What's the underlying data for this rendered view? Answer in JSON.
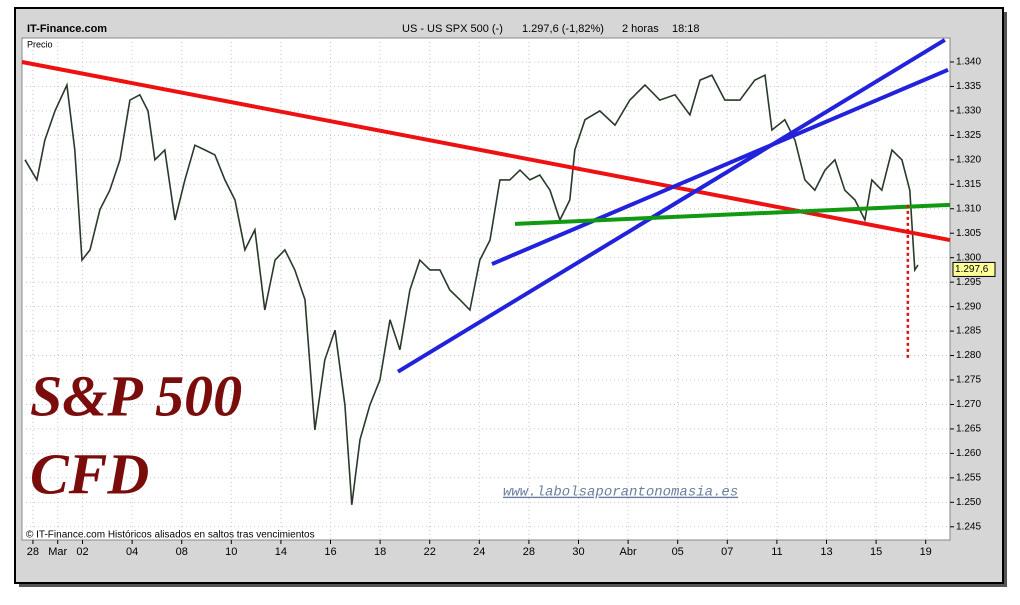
{
  "header": {
    "site": "IT-Finance.com",
    "symbol": "US - US SPX 500 (-)",
    "quote": "1.297,6 (-1,82%)",
    "period": "2 horas",
    "time": "18:18"
  },
  "chart_data": {
    "type": "line",
    "y_axis_label": "Precio",
    "annotations": [
      "S&P 500",
      "CFD",
      "www.labolsaporantonomasia.es",
      "© IT-Finance.com Históricos alisados en saltos tras vencimientos"
    ],
    "last_price": {
      "value": 1.2976,
      "label": "1.297,6"
    },
    "series": [
      {
        "color": "#2a3a2a",
        "x": [
          -0.32,
          0.16,
          0.48,
          0.89,
          1.37,
          1.69,
          1.98,
          2.3,
          2.7,
          3.1,
          3.51,
          3.91,
          4.31,
          4.64,
          4.92,
          5.32,
          5.73,
          6.13,
          6.53,
          6.94,
          7.34,
          7.74,
          8.15,
          8.55,
          8.95,
          9.35,
          9.76,
          10.16,
          10.56,
          10.97,
          11.37,
          11.77,
          12.18,
          12.58,
          12.86,
          13.19,
          13.59,
          13.99,
          14.4,
          14.8,
          15.2,
          15.6,
          16.01,
          16.41,
          16.81,
          17.22,
          17.62,
          18.02,
          18.43,
          18.83,
          19.23,
          19.64,
          20.04,
          20.44,
          20.85,
          21.25,
          21.65,
          21.85,
          22.26,
          22.86,
          23.47,
          24.07,
          24.68,
          25.28,
          25.89,
          26.49,
          26.9,
          27.38,
          27.9,
          28.51,
          29.11,
          29.52,
          29.8,
          30.32,
          30.73,
          31.13,
          31.53,
          31.94,
          32.34,
          32.74,
          33.15,
          33.55,
          33.83,
          34.23,
          34.64,
          35.04,
          35.36,
          35.56,
          35.69
        ],
        "values": [
          1.32,
          1.3159,
          1.324,
          1.33,
          1.3353,
          1.322,
          1.2995,
          1.3016,
          1.3098,
          1.3138,
          1.32,
          1.3322,
          1.3333,
          1.33,
          1.32,
          1.322,
          1.3077,
          1.3159,
          1.323,
          1.322,
          1.321,
          1.3159,
          1.3118,
          1.3016,
          1.3057,
          1.2893,
          1.2995,
          1.3016,
          1.2975,
          1.2914,
          1.2648,
          1.2791,
          1.2852,
          1.2699,
          1.2495,
          1.2628,
          1.2699,
          1.275,
          1.2873,
          1.2812,
          1.2934,
          1.2995,
          1.2975,
          1.2975,
          1.2934,
          1.2914,
          1.2893,
          1.2995,
          1.3036,
          1.3159,
          1.3159,
          1.3179,
          1.3159,
          1.3169,
          1.3138,
          1.3077,
          1.3118,
          1.322,
          1.3282,
          1.33,
          1.3271,
          1.3322,
          1.3353,
          1.3322,
          1.3333,
          1.3292,
          1.3363,
          1.3373,
          1.3322,
          1.3322,
          1.3363,
          1.3373,
          1.3261,
          1.3282,
          1.324,
          1.3159,
          1.3138,
          1.3179,
          1.32,
          1.3138,
          1.3118,
          1.3077,
          1.3159,
          1.3138,
          1.322,
          1.32,
          1.3138,
          1.2975,
          1.2985
        ]
      }
    ],
    "trendlines": [
      {
        "color": "#ee1111",
        "x": [
          -0.44,
          36.98
        ],
        "y": [
          1.34,
          1.3036
        ]
      },
      {
        "color": "#2222dd",
        "x": [
          14.72,
          36.77
        ],
        "y": [
          1.2767,
          1.3445
        ]
      },
      {
        "color": "#2222dd",
        "x": [
          18.51,
          36.9
        ],
        "y": [
          1.2987,
          1.3384
        ]
      },
      {
        "color": "#119911",
        "x": [
          19.44,
          36.98
        ],
        "y": [
          1.3069,
          1.3108
        ]
      },
      {
        "color": "#dd1111",
        "dashed": true,
        "x": [
          35.28,
          35.28
        ],
        "y": [
          1.3108,
          1.2791
        ]
      }
    ],
    "xlim": [
      -0.44,
      36.98
    ],
    "ylim": [
      1.2423,
      1.3449
    ],
    "xticks": [
      {
        "value": 0,
        "label": "28"
      },
      {
        "value": 1,
        "label": "Mar"
      },
      {
        "value": 2,
        "label": "02"
      },
      {
        "value": 4,
        "label": "04"
      },
      {
        "value": 6,
        "label": "08"
      },
      {
        "value": 8,
        "label": "10"
      },
      {
        "value": 10,
        "label": "14"
      },
      {
        "value": 12,
        "label": "16"
      },
      {
        "value": 14,
        "label": "18"
      },
      {
        "value": 16,
        "label": "22"
      },
      {
        "value": 18,
        "label": "24"
      },
      {
        "value": 20,
        "label": "28"
      },
      {
        "value": 22,
        "label": "30"
      },
      {
        "value": 24,
        "label": "Abr"
      },
      {
        "value": 26,
        "label": "05"
      },
      {
        "value": 28,
        "label": "07"
      },
      {
        "value": 30,
        "label": "11"
      },
      {
        "value": 32,
        "label": "13"
      },
      {
        "value": 34,
        "label": "15"
      },
      {
        "value": 36,
        "label": "19"
      }
    ],
    "yticks": [
      {
        "value": 1.245,
        "label": "1.245"
      },
      {
        "value": 1.25,
        "label": "1.250"
      },
      {
        "value": 1.255,
        "label": "1.255"
      },
      {
        "value": 1.26,
        "label": "1.260"
      },
      {
        "value": 1.265,
        "label": "1.265"
      },
      {
        "value": 1.27,
        "label": "1.270"
      },
      {
        "value": 1.275,
        "label": "1.275"
      },
      {
        "value": 1.28,
        "label": "1.280"
      },
      {
        "value": 1.285,
        "label": "1.285"
      },
      {
        "value": 1.29,
        "label": "1.290"
      },
      {
        "value": 1.295,
        "label": "1.295"
      },
      {
        "value": 1.3,
        "label": "1.300"
      },
      {
        "value": 1.305,
        "label": "1.305"
      },
      {
        "value": 1.31,
        "label": "1.310"
      },
      {
        "value": 1.315,
        "label": "1.315"
      },
      {
        "value": 1.32,
        "label": "1.320"
      },
      {
        "value": 1.325,
        "label": "1.325"
      },
      {
        "value": 1.33,
        "label": "1.330"
      },
      {
        "value": 1.335,
        "label": "1.335"
      },
      {
        "value": 1.34,
        "label": "1.340"
      }
    ],
    "grid": true
  }
}
